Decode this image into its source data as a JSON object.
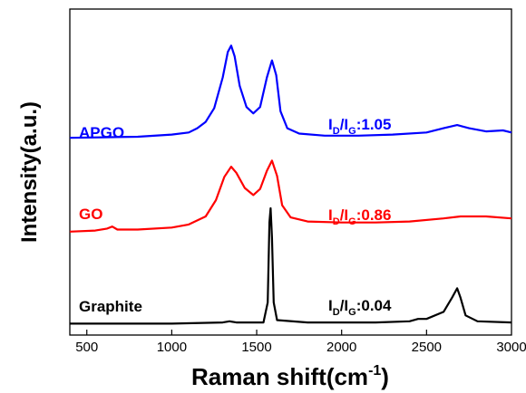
{
  "chart_data": {
    "type": "line",
    "xlabel": "Raman shift(cm",
    "xlabel_sup": "-1",
    "xlabel_close": ")",
    "ylabel": "Intensity(a.u.)",
    "xlim": [
      400,
      3000
    ],
    "x_ticks": [
      500,
      1000,
      1500,
      2000,
      2500,
      3000
    ],
    "y_ticks_shown": false,
    "grid": false,
    "series": [
      {
        "name": "APGO",
        "color": "#0000ff",
        "ratio_label": "1.05",
        "points": [
          [
            400,
            0.05
          ],
          [
            600,
            0.055
          ],
          [
            800,
            0.06
          ],
          [
            1000,
            0.08
          ],
          [
            1100,
            0.1
          ],
          [
            1150,
            0.14
          ],
          [
            1200,
            0.2
          ],
          [
            1250,
            0.33
          ],
          [
            1300,
            0.62
          ],
          [
            1330,
            0.86
          ],
          [
            1350,
            0.92
          ],
          [
            1370,
            0.82
          ],
          [
            1400,
            0.54
          ],
          [
            1440,
            0.34
          ],
          [
            1480,
            0.28
          ],
          [
            1520,
            0.34
          ],
          [
            1560,
            0.62
          ],
          [
            1590,
            0.78
          ],
          [
            1615,
            0.64
          ],
          [
            1640,
            0.3
          ],
          [
            1680,
            0.14
          ],
          [
            1750,
            0.09
          ],
          [
            1900,
            0.07
          ],
          [
            2100,
            0.07
          ],
          [
            2300,
            0.08
          ],
          [
            2500,
            0.1
          ],
          [
            2600,
            0.14
          ],
          [
            2680,
            0.17
          ],
          [
            2750,
            0.14
          ],
          [
            2850,
            0.11
          ],
          [
            2950,
            0.12
          ],
          [
            3000,
            0.1
          ]
        ]
      },
      {
        "name": "GO",
        "color": "#ff0000",
        "ratio_label": "0.86",
        "points": [
          [
            400,
            0.02
          ],
          [
            550,
            0.03
          ],
          [
            620,
            0.05
          ],
          [
            650,
            0.07
          ],
          [
            680,
            0.04
          ],
          [
            800,
            0.04
          ],
          [
            1000,
            0.06
          ],
          [
            1100,
            0.09
          ],
          [
            1200,
            0.17
          ],
          [
            1260,
            0.33
          ],
          [
            1310,
            0.56
          ],
          [
            1350,
            0.66
          ],
          [
            1380,
            0.6
          ],
          [
            1430,
            0.45
          ],
          [
            1480,
            0.38
          ],
          [
            1520,
            0.44
          ],
          [
            1560,
            0.62
          ],
          [
            1590,
            0.72
          ],
          [
            1620,
            0.57
          ],
          [
            1650,
            0.28
          ],
          [
            1700,
            0.16
          ],
          [
            1800,
            0.12
          ],
          [
            2000,
            0.11
          ],
          [
            2200,
            0.11
          ],
          [
            2400,
            0.12
          ],
          [
            2600,
            0.15
          ],
          [
            2700,
            0.17
          ],
          [
            2850,
            0.17
          ],
          [
            3000,
            0.15
          ]
        ]
      },
      {
        "name": "Graphite",
        "color": "#000000",
        "ratio_label": "0.04",
        "points": [
          [
            400,
            0.02
          ],
          [
            1000,
            0.02
          ],
          [
            1300,
            0.03
          ],
          [
            1340,
            0.04
          ],
          [
            1380,
            0.03
          ],
          [
            1540,
            0.03
          ],
          [
            1565,
            0.2
          ],
          [
            1575,
            0.88
          ],
          [
            1582,
            1.0
          ],
          [
            1590,
            0.75
          ],
          [
            1600,
            0.2
          ],
          [
            1620,
            0.05
          ],
          [
            1800,
            0.03
          ],
          [
            2200,
            0.03
          ],
          [
            2400,
            0.04
          ],
          [
            2450,
            0.06
          ],
          [
            2500,
            0.06
          ],
          [
            2600,
            0.12
          ],
          [
            2650,
            0.24
          ],
          [
            2680,
            0.32
          ],
          [
            2700,
            0.24
          ],
          [
            2730,
            0.09
          ],
          [
            2800,
            0.04
          ],
          [
            3000,
            0.03
          ]
        ]
      }
    ]
  }
}
